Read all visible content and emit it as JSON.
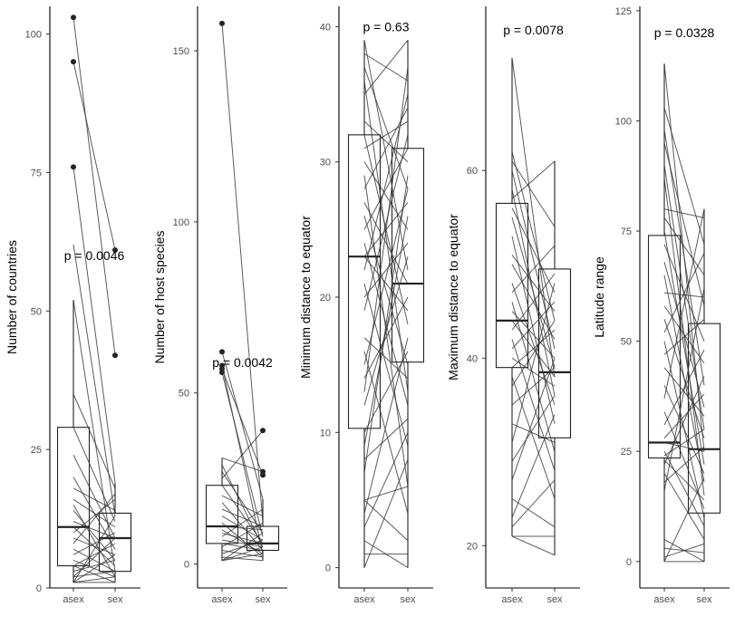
{
  "chart_data": [
    {
      "type": "box",
      "ylabel": "Number of countries",
      "categories": [
        "asex",
        "sex"
      ],
      "ylim": [
        0,
        105
      ],
      "yticks": [
        0,
        25,
        50,
        75,
        100
      ],
      "pvalue": "p = 0.0046",
      "pvalue_y": 60,
      "boxes": {
        "asex": {
          "q1": 4,
          "median": 11,
          "q3": 29,
          "whisker_low": 1,
          "whisker_high": 52,
          "outliers": [
            76,
            95,
            103
          ]
        },
        "sex": {
          "q1": 3,
          "median": 9,
          "q3": 13.5,
          "whisker_low": 1,
          "whisker_high": 19,
          "outliers": [
            42,
            61
          ]
        }
      },
      "pairs": [
        [
          103,
          42
        ],
        [
          95,
          61
        ],
        [
          76,
          19
        ],
        [
          62,
          13
        ],
        [
          52,
          3
        ],
        [
          35,
          18
        ],
        [
          29,
          12
        ],
        [
          24,
          9
        ],
        [
          20,
          7
        ],
        [
          18,
          14
        ],
        [
          16,
          11
        ],
        [
          14,
          5
        ],
        [
          12,
          9
        ],
        [
          11,
          4
        ],
        [
          10,
          16
        ],
        [
          9,
          6
        ],
        [
          8,
          17
        ],
        [
          7,
          3
        ],
        [
          6,
          10
        ],
        [
          5,
          2
        ],
        [
          4,
          8
        ],
        [
          4,
          1
        ],
        [
          3,
          5
        ],
        [
          2,
          3
        ],
        [
          2,
          9
        ],
        [
          1,
          2
        ],
        [
          1,
          1
        ],
        [
          1,
          6
        ],
        [
          1,
          13
        ],
        [
          15,
          2
        ]
      ]
    },
    {
      "type": "box",
      "ylabel": "Number of host species",
      "categories": [
        "asex",
        "sex"
      ],
      "ylim": [
        -7,
        163
      ],
      "yticks": [
        0,
        50,
        100,
        150
      ],
      "pvalue": "p = 0.0042",
      "pvalue_y": 59,
      "boxes": {
        "asex": {
          "q1": 6,
          "median": 11,
          "q3": 23,
          "whisker_low": 1,
          "whisker_high": 31,
          "outliers": [
            56,
            57,
            58,
            62,
            158
          ]
        },
        "sex": {
          "q1": 4,
          "median": 6,
          "q3": 11,
          "whisker_low": 1,
          "whisker_high": 19,
          "outliers": [
            26,
            27,
            39
          ]
        }
      },
      "pairs": [
        [
          158,
          12
        ],
        [
          62,
          19
        ],
        [
          58,
          3
        ],
        [
          57,
          26
        ],
        [
          56,
          8
        ],
        [
          31,
          27
        ],
        [
          29,
          5
        ],
        [
          27,
          9
        ],
        [
          25,
          39
        ],
        [
          23,
          6
        ],
        [
          20,
          14
        ],
        [
          18,
          4
        ],
        [
          16,
          11
        ],
        [
          14,
          7
        ],
        [
          12,
          2
        ],
        [
          11,
          10
        ],
        [
          10,
          3
        ],
        [
          9,
          6
        ],
        [
          8,
          16
        ],
        [
          7,
          5
        ],
        [
          6,
          4
        ],
        [
          5,
          12
        ],
        [
          4,
          2
        ],
        [
          3,
          7
        ],
        [
          2,
          1
        ],
        [
          1,
          3
        ],
        [
          1,
          5
        ],
        [
          1,
          9
        ]
      ]
    },
    {
      "type": "box",
      "ylabel": "Minimum distance to equator",
      "categories": [
        "asex",
        "sex"
      ],
      "ylim": [
        -1.5,
        41.5
      ],
      "yticks": [
        0,
        10,
        20,
        30,
        40
      ],
      "pvalue": "p = 0.63",
      "pvalue_y": 40,
      "boxes": {
        "asex": {
          "q1": 10.3,
          "median": 23,
          "q3": 32,
          "whisker_low": 0,
          "whisker_high": 39,
          "outliers": []
        },
        "sex": {
          "q1": 15.2,
          "median": 21,
          "q3": 31,
          "whisker_low": 0,
          "whisker_high": 39,
          "outliers": []
        }
      },
      "pairs": [
        [
          39,
          22
        ],
        [
          38,
          36
        ],
        [
          37,
          28
        ],
        [
          36,
          13
        ],
        [
          35,
          39
        ],
        [
          33,
          30
        ],
        [
          32,
          18
        ],
        [
          31,
          33
        ],
        [
          30,
          25
        ],
        [
          29,
          6
        ],
        [
          28,
          34
        ],
        [
          27,
          21
        ],
        [
          26,
          15
        ],
        [
          25,
          31
        ],
        [
          24,
          12
        ],
        [
          23,
          27
        ],
        [
          23,
          19
        ],
        [
          22,
          35
        ],
        [
          21,
          9
        ],
        [
          20,
          24
        ],
        [
          19,
          32
        ],
        [
          17,
          14
        ],
        [
          16,
          4
        ],
        [
          15,
          28
        ],
        [
          14,
          20
        ],
        [
          13,
          37
        ],
        [
          12,
          23
        ],
        [
          10,
          16
        ],
        [
          9,
          26
        ],
        [
          8,
          11
        ],
        [
          7,
          29
        ],
        [
          5,
          2
        ],
        [
          5,
          6
        ],
        [
          4,
          17
        ],
        [
          3,
          10
        ],
        [
          2,
          0
        ],
        [
          1,
          1
        ],
        [
          0,
          8
        ]
      ]
    },
    {
      "type": "box",
      "ylabel": "Maximum distance to equator",
      "categories": [
        "asex",
        "sex"
      ],
      "ylim": [
        15.5,
        77.5
      ],
      "yticks": [
        20,
        40,
        60
      ],
      "pvalue": "p = 0.0078",
      "pvalue_y": 75,
      "boxes": {
        "asex": {
          "q1": 39,
          "median": 44,
          "q3": 56.5,
          "whisker_low": 21,
          "whisker_high": 72,
          "outliers": []
        },
        "sex": {
          "q1": 31.5,
          "median": 38.5,
          "q3": 49.5,
          "whisker_low": 19,
          "whisker_high": 61,
          "outliers": []
        }
      },
      "pairs": [
        [
          72,
          38
        ],
        [
          62,
          44
        ],
        [
          61,
          54
        ],
        [
          60,
          41
        ],
        [
          58,
          36
        ],
        [
          57,
          61
        ],
        [
          56,
          47
        ],
        [
          55,
          39
        ],
        [
          53,
          33
        ],
        [
          51,
          45
        ],
        [
          50,
          42
        ],
        [
          48,
          35
        ],
        [
          47,
          52
        ],
        [
          46,
          30
        ],
        [
          45,
          40
        ],
        [
          44,
          38
        ],
        [
          43,
          49
        ],
        [
          42,
          28
        ],
        [
          41,
          46
        ],
        [
          40,
          37
        ],
        [
          39,
          43
        ],
        [
          38,
          25
        ],
        [
          37,
          44
        ],
        [
          35,
          39
        ],
        [
          33,
          31
        ],
        [
          31,
          48
        ],
        [
          29,
          36
        ],
        [
          27,
          40
        ],
        [
          25,
          22
        ],
        [
          23,
          34
        ],
        [
          22,
          27
        ],
        [
          21,
          21
        ],
        [
          21,
          19
        ]
      ]
    },
    {
      "type": "box",
      "ylabel": "Latitude range",
      "categories": [
        "asex",
        "sex"
      ],
      "ylim": [
        -6,
        126
      ],
      "yticks": [
        0,
        25,
        50,
        75,
        100,
        125
      ],
      "pvalue": "p = 0.0328",
      "pvalue_y": 120,
      "boxes": {
        "asex": {
          "q1": 23.5,
          "median": 27,
          "q3": 74,
          "whisker_low": 0,
          "whisker_high": 113,
          "outliers": []
        },
        "sex": {
          "q1": 11,
          "median": 25.5,
          "q3": 54,
          "whisker_low": 0,
          "whisker_high": 80,
          "outliers": []
        }
      },
      "pairs": [
        [
          113,
          25
        ],
        [
          103,
          72
        ],
        [
          98,
          40
        ],
        [
          95,
          58
        ],
        [
          90,
          30
        ],
        [
          87,
          15
        ],
        [
          80,
          78
        ],
        [
          78,
          65
        ],
        [
          75,
          22
        ],
        [
          72,
          50
        ],
        [
          68,
          35
        ],
        [
          65,
          18
        ],
        [
          61,
          60
        ],
        [
          58,
          45
        ],
        [
          55,
          28
        ],
        [
          52,
          70
        ],
        [
          50,
          10
        ],
        [
          47,
          55
        ],
        [
          44,
          33
        ],
        [
          40,
          20
        ],
        [
          37,
          80
        ],
        [
          34,
          12
        ],
        [
          31,
          48
        ],
        [
          28,
          38
        ],
        [
          27,
          25
        ],
        [
          25,
          8
        ],
        [
          24,
          30
        ],
        [
          23,
          14
        ],
        [
          22,
          42
        ],
        [
          20,
          5
        ],
        [
          18,
          26
        ],
        [
          16,
          62
        ],
        [
          5,
          0
        ],
        [
          3,
          2
        ],
        [
          1,
          4
        ],
        [
          0,
          0
        ],
        [
          0,
          19
        ]
      ]
    }
  ]
}
